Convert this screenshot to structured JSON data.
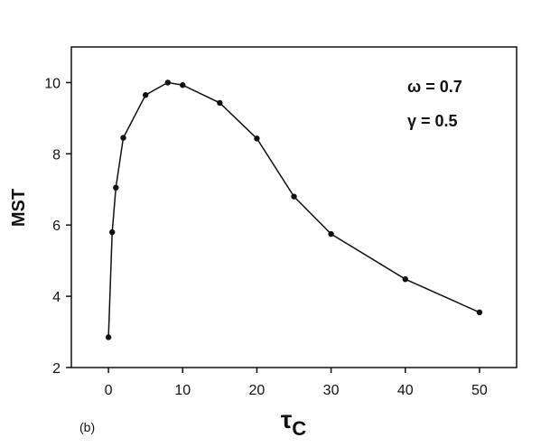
{
  "chart_data": {
    "type": "line",
    "x": [
      0,
      0.5,
      1,
      2,
      5,
      8,
      10,
      15,
      20,
      25,
      30,
      40,
      50
    ],
    "series": [
      {
        "values": [
          2.85,
          5.8,
          7.05,
          8.45,
          9.65,
          10.0,
          9.93,
          9.43,
          8.43,
          6.8,
          5.75,
          4.48,
          3.55
        ]
      }
    ],
    "xlabel_main": "τ",
    "xlabel_sub": "C",
    "ylabel": "MST",
    "xlim": [
      -5,
      55
    ],
    "ylim": [
      2,
      11
    ],
    "xticks": [
      "0",
      "10",
      "20",
      "30",
      "40",
      "50"
    ],
    "yticks": [
      "2",
      "4",
      "6",
      "8",
      "10"
    ],
    "annotations": [
      "ω = 0.7",
      "γ = 0.5"
    ],
    "panel_label": "(b)",
    "grid": false,
    "legend": "none"
  }
}
